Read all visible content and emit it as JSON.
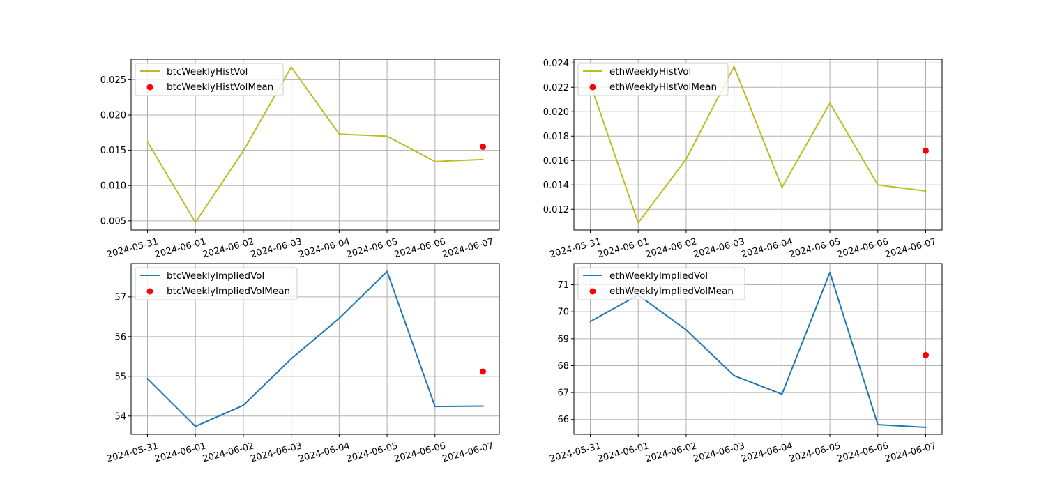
{
  "chart_data": [
    {
      "type": "line",
      "x": [
        "2024-05-31",
        "2024-06-01",
        "2024-06-02",
        "2024-06-03",
        "2024-06-04",
        "2024-06-05",
        "2024-06-06",
        "2024-06-07"
      ],
      "series": [
        {
          "name": "btcWeeklyHistVol",
          "kind": "line",
          "color": "#bcbd22",
          "values": [
            0.0162,
            0.0048,
            0.0149,
            0.0268,
            0.0173,
            0.017,
            0.0134,
            0.0137
          ]
        },
        {
          "name": "btcWeeklyHistVolMean",
          "kind": "scatter",
          "color": "#ff0000",
          "points": [
            {
              "x": "2024-06-07",
              "y": 0.0155
            }
          ]
        }
      ],
      "yticks": [
        0.005,
        0.01,
        0.015,
        0.02,
        0.025
      ],
      "ytick_labels": [
        "0.005",
        "0.010",
        "0.015",
        "0.020",
        "0.025"
      ],
      "ylim": [
        0.0037,
        0.0279
      ],
      "grid": true,
      "legend": "upper left",
      "title": "",
      "xlabel": "",
      "ylabel": ""
    },
    {
      "type": "line",
      "x": [
        "2024-05-31",
        "2024-06-01",
        "2024-06-02",
        "2024-06-03",
        "2024-06-04",
        "2024-06-05",
        "2024-06-06",
        "2024-06-07"
      ],
      "series": [
        {
          "name": "ethWeeklyHistVol",
          "kind": "line",
          "color": "#bcbd22",
          "values": [
            0.0223,
            0.0109,
            0.0161,
            0.0237,
            0.0138,
            0.0207,
            0.014,
            0.0135
          ]
        },
        {
          "name": "ethWeeklyHistVolMean",
          "kind": "scatter",
          "color": "#ff0000",
          "points": [
            {
              "x": "2024-06-07",
              "y": 0.0168
            }
          ]
        }
      ],
      "yticks": [
        0.012,
        0.014,
        0.016,
        0.018,
        0.02,
        0.022,
        0.024
      ],
      "ytick_labels": [
        "0.012",
        "0.014",
        "0.016",
        "0.018",
        "0.020",
        "0.022",
        "0.024"
      ],
      "ylim": [
        0.0103,
        0.0243
      ],
      "grid": true,
      "legend": "upper left",
      "title": "",
      "xlabel": "",
      "ylabel": ""
    },
    {
      "type": "line",
      "x": [
        "2024-05-31",
        "2024-06-01",
        "2024-06-02",
        "2024-06-03",
        "2024-06-04",
        "2024-06-05",
        "2024-06-06",
        "2024-06-07"
      ],
      "series": [
        {
          "name": "btcWeeklyImpliedVol",
          "kind": "line",
          "color": "#1f77b4",
          "values": [
            54.94,
            53.74,
            54.27,
            55.44,
            56.46,
            57.64,
            54.24,
            54.25
          ]
        },
        {
          "name": "btcWeeklyImpliedVolMean",
          "kind": "scatter",
          "color": "#ff0000",
          "points": [
            {
              "x": "2024-06-07",
              "y": 55.12
            }
          ]
        }
      ],
      "yticks": [
        54,
        55,
        56,
        57
      ],
      "ytick_labels": [
        "54",
        "55",
        "56",
        "57"
      ],
      "ylim": [
        53.54,
        57.84
      ],
      "grid": true,
      "legend": "upper left",
      "title": "",
      "xlabel": "",
      "ylabel": ""
    },
    {
      "type": "line",
      "x": [
        "2024-05-31",
        "2024-06-01",
        "2024-06-02",
        "2024-06-03",
        "2024-06-04",
        "2024-06-05",
        "2024-06-06",
        "2024-06-07"
      ],
      "series": [
        {
          "name": "ethWeeklyImpliedVol",
          "kind": "line",
          "color": "#1f77b4",
          "values": [
            69.64,
            70.62,
            69.33,
            67.63,
            66.94,
            71.46,
            65.81,
            65.71
          ]
        },
        {
          "name": "ethWeeklyImpliedVolMean",
          "kind": "scatter",
          "color": "#ff0000",
          "points": [
            {
              "x": "2024-06-07",
              "y": 68.39
            }
          ]
        }
      ],
      "yticks": [
        66,
        67,
        68,
        69,
        70,
        71
      ],
      "ytick_labels": [
        "66",
        "67",
        "68",
        "69",
        "70",
        "71"
      ],
      "ylim": [
        65.45,
        71.79
      ],
      "grid": true,
      "legend": "upper left",
      "title": "",
      "xlabel": "",
      "ylabel": ""
    }
  ]
}
